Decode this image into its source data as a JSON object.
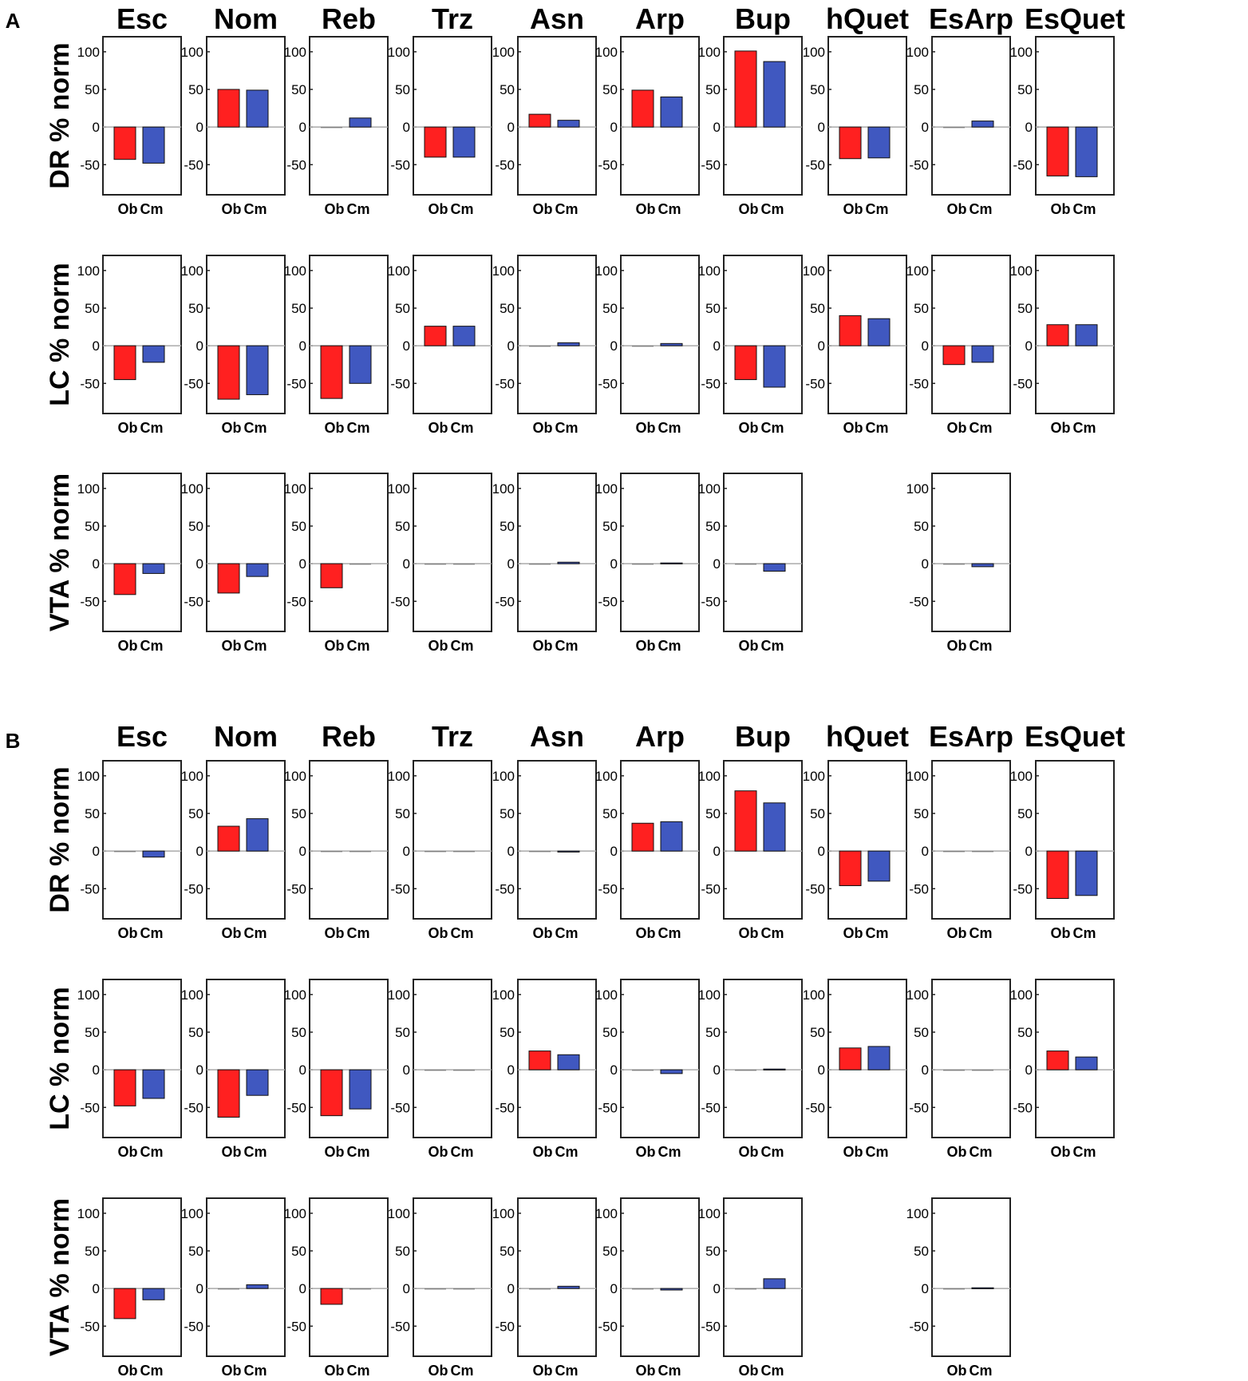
{
  "figure": {
    "bar_colors": {
      "observed": "#ff2020",
      "computed": "#4058c0"
    }
  },
  "chart_data": [
    {
      "type": "bar",
      "panel": "A",
      "columns": [
        "Esc",
        "Nom",
        "Reb",
        "Trz",
        "Asn",
        "Arp",
        "Bup",
        "hQuet",
        "EsArp",
        "EsQuet"
      ],
      "categories": [
        "Ob",
        "Cm"
      ],
      "yticks": [
        100,
        50,
        0,
        -50
      ],
      "ylim": [
        -90,
        120
      ],
      "rows": [
        {
          "ylabel": "DR % norm",
          "values": [
            [
              -43,
              -48
            ],
            [
              50,
              49
            ],
            [
              0,
              12
            ],
            [
              -40,
              -40
            ],
            [
              17,
              9
            ],
            [
              49,
              40
            ],
            [
              101,
              87
            ],
            [
              -42,
              -41
            ],
            [
              0,
              8
            ],
            [
              -65,
              -66
            ]
          ]
        },
        {
          "ylabel": "LC % norm",
          "values": [
            [
              -45,
              -22
            ],
            [
              -71,
              -65
            ],
            [
              -70,
              -50
            ],
            [
              26,
              26
            ],
            [
              0,
              4
            ],
            [
              0,
              3
            ],
            [
              -45,
              -55
            ],
            [
              40,
              36
            ],
            [
              -25,
              -22
            ],
            [
              28,
              28
            ]
          ]
        },
        {
          "ylabel": "VTA % norm",
          "values": [
            [
              -41,
              -13
            ],
            [
              -39,
              -17
            ],
            [
              -32,
              0
            ],
            [
              0,
              0
            ],
            [
              0,
              2
            ],
            [
              0,
              1
            ],
            [
              0,
              -10
            ],
            null,
            [
              0,
              -4
            ],
            null
          ]
        }
      ]
    },
    {
      "type": "bar",
      "panel": "B",
      "columns": [
        "Esc",
        "Nom",
        "Reb",
        "Trz",
        "Asn",
        "Arp",
        "Bup",
        "hQuet",
        "EsArp",
        "EsQuet"
      ],
      "categories": [
        "Ob",
        "Cm"
      ],
      "yticks": [
        100,
        50,
        0,
        -50
      ],
      "ylim": [
        -90,
        120
      ],
      "rows": [
        {
          "ylabel": "DR % norm",
          "values": [
            [
              0,
              -8
            ],
            [
              33,
              43
            ],
            [
              0,
              0
            ],
            [
              0,
              0
            ],
            [
              0,
              -1
            ],
            [
              37,
              39
            ],
            [
              80,
              64
            ],
            [
              -46,
              -40
            ],
            [
              0,
              0
            ],
            [
              -63,
              -59
            ]
          ]
        },
        {
          "ylabel": "LC % norm",
          "values": [
            [
              -48,
              -38
            ],
            [
              -63,
              -34
            ],
            [
              -61,
              -52
            ],
            [
              0,
              0
            ],
            [
              25,
              20
            ],
            [
              0,
              -5
            ],
            [
              0,
              1
            ],
            [
              29,
              31
            ],
            [
              0,
              0
            ],
            [
              25,
              17
            ]
          ]
        },
        {
          "ylabel": "VTA % norm",
          "values": [
            [
              -40,
              -15
            ],
            [
              0,
              5
            ],
            [
              -21,
              0
            ],
            [
              0,
              0
            ],
            [
              0,
              3
            ],
            [
              0,
              -2
            ],
            [
              0,
              13
            ],
            null,
            [
              0,
              1
            ],
            null
          ]
        }
      ]
    }
  ]
}
